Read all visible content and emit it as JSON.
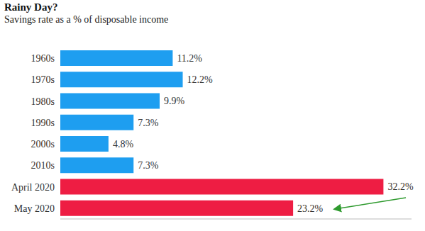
{
  "chart_data": {
    "type": "bar",
    "title": "Rainy Day?",
    "subtitle": "Savings rate as a % of disposable income",
    "orientation": "horizontal",
    "categories": [
      "1960s",
      "1970s",
      "1980s",
      "1990s",
      "2000s",
      "2010s",
      "April 2020",
      "May 2020"
    ],
    "values": [
      11.2,
      12.2,
      9.9,
      7.3,
      4.8,
      7.3,
      32.2,
      23.2
    ],
    "value_labels": [
      "11.2%",
      "12.2%",
      "9.9%",
      "7.3%",
      "4.8%",
      "7.3%",
      "32.2%",
      "23.2%"
    ],
    "colors": [
      "#1e9ef0",
      "#1e9ef0",
      "#1e9ef0",
      "#1e9ef0",
      "#1e9ef0",
      "#1e9ef0",
      "#ee1d43",
      "#ee1d43"
    ],
    "xlim": [
      0,
      35
    ],
    "data_labels": true,
    "tick_labels": "y",
    "grid": false
  }
}
